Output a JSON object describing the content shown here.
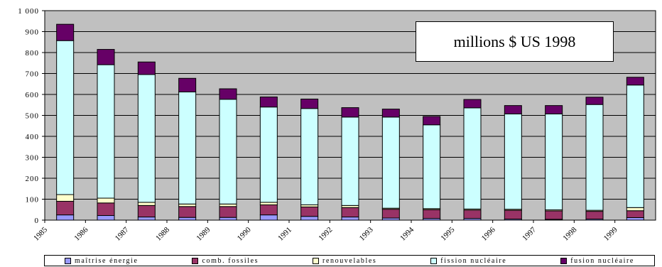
{
  "unit_label": "millions $ US 1998",
  "chart_data": {
    "type": "bar",
    "stacked": true,
    "categories": [
      "1985",
      "1986",
      "1987",
      "1988",
      "1989",
      "1990",
      "1991",
      "1992",
      "1993",
      "1994",
      "1995",
      "1996",
      "1997",
      "1998",
      "1999"
    ],
    "ylim": [
      0,
      1000
    ],
    "yticks": [
      "0",
      "100",
      "200",
      "300",
      "400",
      "500",
      "600",
      "700",
      "800",
      "900",
      "1 000"
    ],
    "grid": true,
    "legend_position": "bottom",
    "series": [
      {
        "name": "maîtrise énergie",
        "color": "#9999ff",
        "values": [
          25,
          22,
          15,
          13,
          13,
          25,
          18,
          15,
          10,
          8,
          8,
          5,
          4,
          5,
          12
        ]
      },
      {
        "name": "comb. fossiles",
        "color": "#993366",
        "values": [
          65,
          60,
          55,
          52,
          52,
          48,
          45,
          45,
          42,
          42,
          40,
          42,
          40,
          37,
          33
        ]
      },
      {
        "name": "renouvelables",
        "color": "#ffffcc",
        "values": [
          32,
          23,
          15,
          12,
          12,
          12,
          10,
          10,
          5,
          5,
          5,
          5,
          5,
          5,
          15
        ]
      },
      {
        "name": "fission nucléaire",
        "color": "#ccffff",
        "values": [
          735,
          637,
          610,
          535,
          500,
          455,
          460,
          422,
          435,
          400,
          483,
          455,
          458,
          505,
          585
        ]
      },
      {
        "name": "fusion nucléaire",
        "color": "#660066",
        "values": [
          78,
          73,
          60,
          65,
          50,
          48,
          45,
          45,
          38,
          40,
          40,
          40,
          40,
          35,
          37
        ]
      }
    ]
  }
}
